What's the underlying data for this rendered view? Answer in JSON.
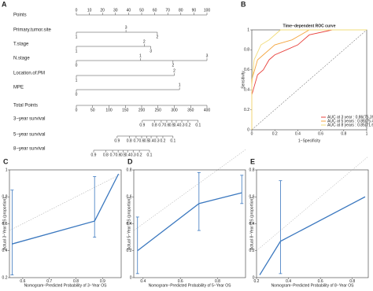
{
  "chart_data": [
    {
      "type": "nomogram",
      "panel": "A",
      "points_axis": {
        "label": "Points",
        "ticks": [
          0,
          10,
          20,
          30,
          40,
          50,
          60,
          70,
          80,
          90,
          100
        ]
      },
      "variables": [
        {
          "name": "Primary.tumor.site",
          "levels": [
            "1",
            "3",
            "2"
          ],
          "points": [
            0,
            38,
            62
          ]
        },
        {
          "name": "T.stage",
          "levels": [
            "1",
            "2",
            "3"
          ],
          "points": [
            0,
            52,
            57
          ]
        },
        {
          "name": "N.stage",
          "levels": [
            "0",
            "1",
            "2",
            "3"
          ],
          "points": [
            0,
            49,
            74,
            100
          ]
        },
        {
          "name": "Location.of.PM",
          "levels": [
            "1",
            "2"
          ],
          "points": [
            0,
            75
          ]
        },
        {
          "name": "MPE",
          "levels": [
            "0",
            "1"
          ],
          "points": [
            0,
            79
          ]
        }
      ],
      "total_points": {
        "label": "Total Points",
        "ticks": [
          0,
          50,
          100,
          150,
          200,
          250,
          300,
          350,
          400
        ]
      },
      "survival": [
        {
          "name": "3−year survival",
          "probs": [
            0.9,
            0.8,
            0.7,
            0.6,
            0.5,
            0.4,
            0.3,
            0.2,
            0.1
          ],
          "total": [
            202,
            239,
            260,
            277,
            292,
            306,
            323,
            342,
            373
          ]
        },
        {
          "name": "5−year survival",
          "probs": [
            0.9,
            0.8,
            0.7,
            0.6,
            0.5,
            0.4,
            0.3,
            0.2,
            0.1
          ],
          "total": [
            125,
            162,
            183,
            200,
            215,
            229,
            246,
            265,
            296
          ]
        },
        {
          "name": "8−year survival",
          "probs": [
            0.9,
            0.8,
            0.7,
            0.6,
            0.5,
            0.4,
            0.3,
            0.2,
            0.1
          ],
          "total": [
            53,
            90,
            111,
            128,
            143,
            157,
            174,
            193,
            224
          ]
        }
      ]
    },
    {
      "type": "roc",
      "panel": "B",
      "title": "Time−dependent ROC curve",
      "xlabel": "1−Specificity",
      "ylabel": "Sensitivity",
      "xlim": [
        0,
        1
      ],
      "ylim": [
        0,
        1
      ],
      "xticks": [
        0,
        0.2,
        0.4,
        0.6,
        0.8,
        1
      ],
      "yticks": [
        0,
        0.2,
        0.4,
        0.6,
        0.8,
        1
      ],
      "series": [
        {
          "name": "AUC at 3 year : 0.86(75.39−95.81)",
          "color": "#e8413c",
          "x": [
            0,
            0,
            0.05,
            0.1,
            0.15,
            0.2,
            0.3,
            0.4,
            0.5,
            0.7,
            1
          ],
          "values": [
            0,
            0.35,
            0.55,
            0.6,
            0.7,
            0.75,
            0.8,
            0.85,
            0.95,
            1,
            1
          ]
        },
        {
          "name": "AUC at 5 years : 0.86(75.40−96.89)",
          "color": "#f4a640",
          "x": [
            0,
            0,
            0.05,
            0.1,
            0.2,
            0.35,
            0.5,
            1
          ],
          "values": [
            0,
            0.5,
            0.7,
            0.75,
            0.85,
            0.9,
            1,
            1
          ]
        },
        {
          "name": "AUC at 8 years : 0.85(71.62−98.71)",
          "color": "#f2dc7a",
          "x": [
            0,
            0,
            0.02,
            0.08,
            0.15,
            0.25,
            1
          ],
          "values": [
            0,
            0.45,
            0.7,
            0.85,
            0.9,
            1,
            1
          ]
        }
      ]
    },
    {
      "type": "calibration",
      "panel": "C",
      "color": "#3b78bf",
      "xlabel": "Nomogram−Predicted Probability of 3−Year OS",
      "ylabel": "Actual 3−Year OS (proportion)",
      "xlim": [
        0.55,
        0.97
      ],
      "ylim": [
        0.2,
        1
      ],
      "xticks": [
        0.6,
        0.7,
        0.8,
        0.9
      ],
      "yticks": [
        0.2,
        0.4,
        0.6,
        0.8,
        1
      ],
      "x": [
        0.56,
        0.87,
        0.96
      ],
      "values": [
        0.45,
        0.62,
        0.97
      ],
      "lower": [
        0.22,
        0.5,
        null
      ],
      "upper": [
        0.85,
        0.95,
        null
      ]
    },
    {
      "type": "calibration",
      "panel": "D",
      "color": "#3b78bf",
      "xlabel": "Nomogram−Predicted Probability of 5−Year OS",
      "ylabel": "Actual 5−Year OS (proportion)",
      "xlim": [
        0.35,
        0.95
      ],
      "ylim": [
        0,
        0.8
      ],
      "xticks": [
        0.4,
        0.6,
        0.8
      ],
      "yticks": [
        0,
        0.2,
        0.4,
        0.6,
        0.8
      ],
      "x": [
        0.37,
        0.7,
        0.93
      ],
      "values": [
        0.2,
        0.55,
        0.63
      ],
      "lower": [
        0.03,
        0.35,
        0.55
      ],
      "upper": [
        0.45,
        0.78,
        0.76
      ]
    },
    {
      "type": "calibration",
      "panel": "E",
      "color": "#3b78bf",
      "xlabel": "Nomogram−Predicted Probability of 8−Year OS",
      "ylabel": "Actual 8−Year OS (proportion)",
      "xlim": [
        0.2,
        0.9
      ],
      "ylim": [
        0,
        0.8
      ],
      "xticks": [
        0.2,
        0.4,
        0.6,
        0.8
      ],
      "yticks": [
        0,
        0.2,
        0.4,
        0.6,
        0.8
      ],
      "x": [
        0.22,
        0.35,
        0.88
      ],
      "values": [
        0.02,
        0.27,
        0.6
      ],
      "lower": [
        null,
        0.03,
        null
      ],
      "upper": [
        null,
        0.72,
        null
      ]
    }
  ]
}
